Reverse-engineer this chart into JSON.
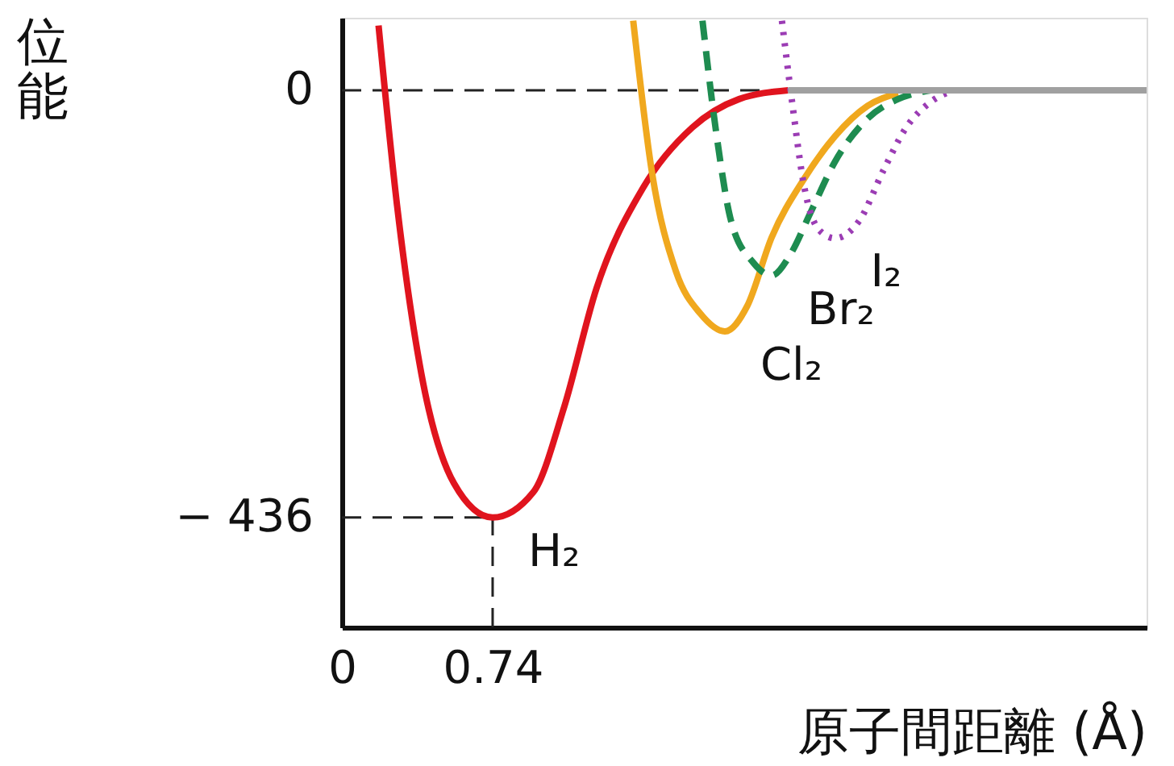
{
  "chart_data": {
    "type": "line",
    "xlabel": "原子間距離 (Å)",
    "ylabel": "位能",
    "xlim": [
      0,
      3.95
    ],
    "ylim": [
      -548,
      74
    ],
    "xticks": [
      0,
      0.74
    ],
    "yticks": [
      0,
      {
        "value": -436,
        "label": "− 436"
      }
    ],
    "grid": false,
    "series": [
      {
        "name": "H₂",
        "color": "#e0141e",
        "line_style": "solid",
        "x": [
          0.18,
          0.27,
          0.39,
          0.55,
          0.74,
          0.94,
          1.09,
          1.25,
          1.48,
          1.72,
          1.95,
          2.19
        ],
        "values": [
          66,
          -116,
          -289,
          -401,
          -436,
          -410,
          -324,
          -202,
          -99,
          -38,
          -9,
          0
        ]
      },
      {
        "name": "Cl₂",
        "color": "#f0a81e",
        "line_style": "solid",
        "x": [
          1.43,
          1.52,
          1.64,
          1.76,
          1.88,
          1.99,
          2.11,
          2.27,
          2.42,
          2.58,
          2.73
        ],
        "values": [
          71,
          -81,
          -185,
          -228,
          -246,
          -220,
          -150,
          -90,
          -47,
          -16,
          -3
        ]
      },
      {
        "name": "Br₂",
        "color": "#1e8c50",
        "line_style": "dashed",
        "x": [
          1.77,
          1.84,
          1.91,
          2.02,
          2.11,
          2.2,
          2.3,
          2.42,
          2.58,
          2.73,
          2.89
        ],
        "values": [
          71,
          -47,
          -133,
          -176,
          -189,
          -168,
          -125,
          -73,
          -29,
          -9,
          0
        ]
      },
      {
        "name": "I₂",
        "color": "#9b3cb4",
        "line_style": "dotted",
        "x": [
          2.16,
          2.21,
          2.27,
          2.34,
          2.42,
          2.54,
          2.66,
          2.77,
          2.89,
          3.0
        ],
        "values": [
          71,
          -12,
          -99,
          -142,
          -151,
          -133,
          -81,
          -38,
          -12,
          0
        ]
      },
      {
        "color": "#a0a0a0",
        "line_style": "solid",
        "x": [
          2.19,
          3.95
        ],
        "values": [
          0,
          0
        ]
      }
    ],
    "ref_lines": [
      {
        "axis": "y",
        "value": 0,
        "line_style": "dashed",
        "color": "#222222"
      },
      {
        "axis": "y",
        "value": -436,
        "line_style": "dashed",
        "color": "#222222"
      },
      {
        "axis": "x",
        "value": 0.74,
        "line_style": "dashed",
        "color": "#222222"
      }
    ]
  }
}
